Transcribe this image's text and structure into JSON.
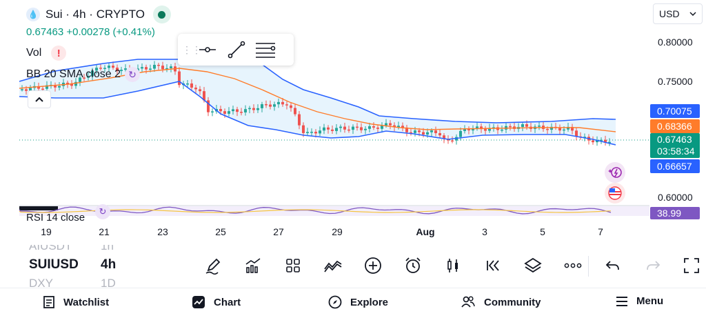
{
  "header": {
    "symbol_title": "Sui · 4h · CRYPTO",
    "price_summary": "0.67463 +0.00278 (+0.41%)",
    "volume_label": "Vol",
    "bb_label": "BB 20 SMA close 2",
    "rsi_label": "RSI 14 close",
    "currency": "USD"
  },
  "price_axis": {
    "labels": [
      "0.80000",
      "0.75000",
      "0.60000"
    ],
    "tags": {
      "bb_upper": "0.70075",
      "bb_basis": "0.68366",
      "last_price": "0.67463",
      "countdown": "03:58:34",
      "bb_lower": "0.66657",
      "rsi": "38.99"
    }
  },
  "time_axis": {
    "labels": [
      "19",
      "21",
      "23",
      "25",
      "27",
      "29",
      "Aug",
      "3",
      "5",
      "7"
    ]
  },
  "colors": {
    "up": "#26a69a",
    "down": "#ef5350",
    "bb_band": "#2962ff",
    "bb_basis": "#ff7c2a",
    "bb_fill": "#e3f2fd",
    "rsi": "#7e57c2",
    "rsi_ma": "#f5c542"
  },
  "symbol_list": {
    "above": {
      "symbol": "AIUSDT",
      "interval": "1h"
    },
    "current": {
      "symbol": "SUIUSD",
      "interval": "4h"
    },
    "below": {
      "symbol": "DXY",
      "interval": "1D"
    }
  },
  "toolbar": {
    "icons": [
      "pen-icon",
      "indicators-icon",
      "layouts-icon",
      "compare-icon",
      "add-icon",
      "alert-clock-icon",
      "candles-icon",
      "replay-icon",
      "layers-icon",
      "more-icon"
    ]
  },
  "bottom_nav": {
    "watchlist": "Watchlist",
    "chart": "Chart",
    "explore": "Explore",
    "community": "Community",
    "menu": "Menu"
  }
}
